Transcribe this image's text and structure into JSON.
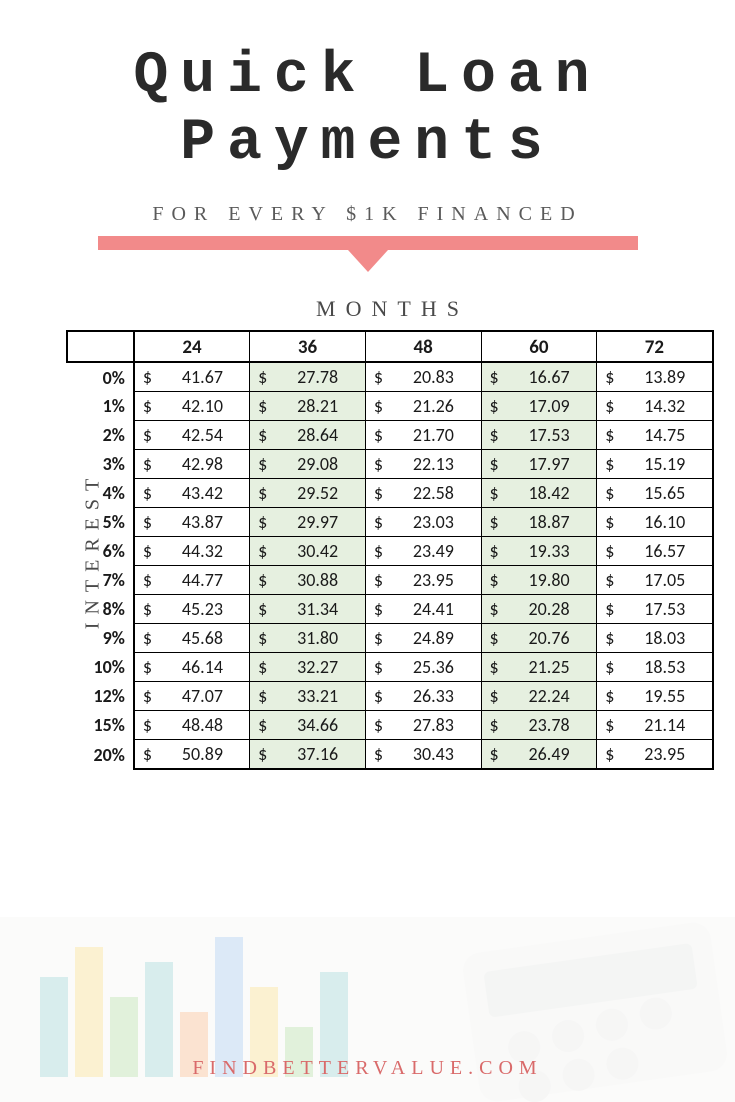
{
  "header": {
    "title_line1": "Quick Loan",
    "title_line2": "Payments",
    "subtitle": "FOR EVERY $1K FINANCED",
    "accent_color": "#f28a8a"
  },
  "table": {
    "months_label": "MONTHS",
    "interest_label": "INTEREST",
    "columns": [
      "24",
      "36",
      "48",
      "60",
      "72"
    ],
    "highlight_columns": [
      1,
      3
    ],
    "highlight_bg": "#e6f0e0",
    "row_labels": [
      "0%",
      "1%",
      "2%",
      "3%",
      "4%",
      "5%",
      "6%",
      "7%",
      "8%",
      "9%",
      "10%",
      "12%",
      "15%",
      "20%"
    ],
    "rows": [
      [
        "41.67",
        "27.78",
        "20.83",
        "16.67",
        "13.89"
      ],
      [
        "42.10",
        "28.21",
        "21.26",
        "17.09",
        "14.32"
      ],
      [
        "42.54",
        "28.64",
        "21.70",
        "17.53",
        "14.75"
      ],
      [
        "42.98",
        "29.08",
        "22.13",
        "17.97",
        "15.19"
      ],
      [
        "43.42",
        "29.52",
        "22.58",
        "18.42",
        "15.65"
      ],
      [
        "43.87",
        "29.97",
        "23.03",
        "18.87",
        "16.10"
      ],
      [
        "44.32",
        "30.42",
        "23.49",
        "19.33",
        "16.57"
      ],
      [
        "44.77",
        "30.88",
        "23.95",
        "19.80",
        "17.05"
      ],
      [
        "45.23",
        "31.34",
        "24.41",
        "20.28",
        "17.53"
      ],
      [
        "45.68",
        "31.80",
        "24.89",
        "20.76",
        "18.03"
      ],
      [
        "46.14",
        "32.27",
        "25.36",
        "21.25",
        "18.53"
      ],
      [
        "47.07",
        "33.21",
        "26.33",
        "22.24",
        "19.55"
      ],
      [
        "48.48",
        "34.66",
        "27.83",
        "23.78",
        "21.14"
      ],
      [
        "50.89",
        "37.16",
        "30.43",
        "26.49",
        "23.95"
      ]
    ],
    "currency_symbol": "$",
    "border_color": "#000000",
    "text_color": "#1a1a1a",
    "header_fontsize": 19,
    "cell_fontsize": 18
  },
  "footer": {
    "url": "FINDBETTERVALUE.COM",
    "url_color": "#d96a6a",
    "bar_colors": [
      "#7fc6c6",
      "#f2d36b",
      "#9fd48a",
      "#f2a66b",
      "#8fb7e6"
    ]
  }
}
